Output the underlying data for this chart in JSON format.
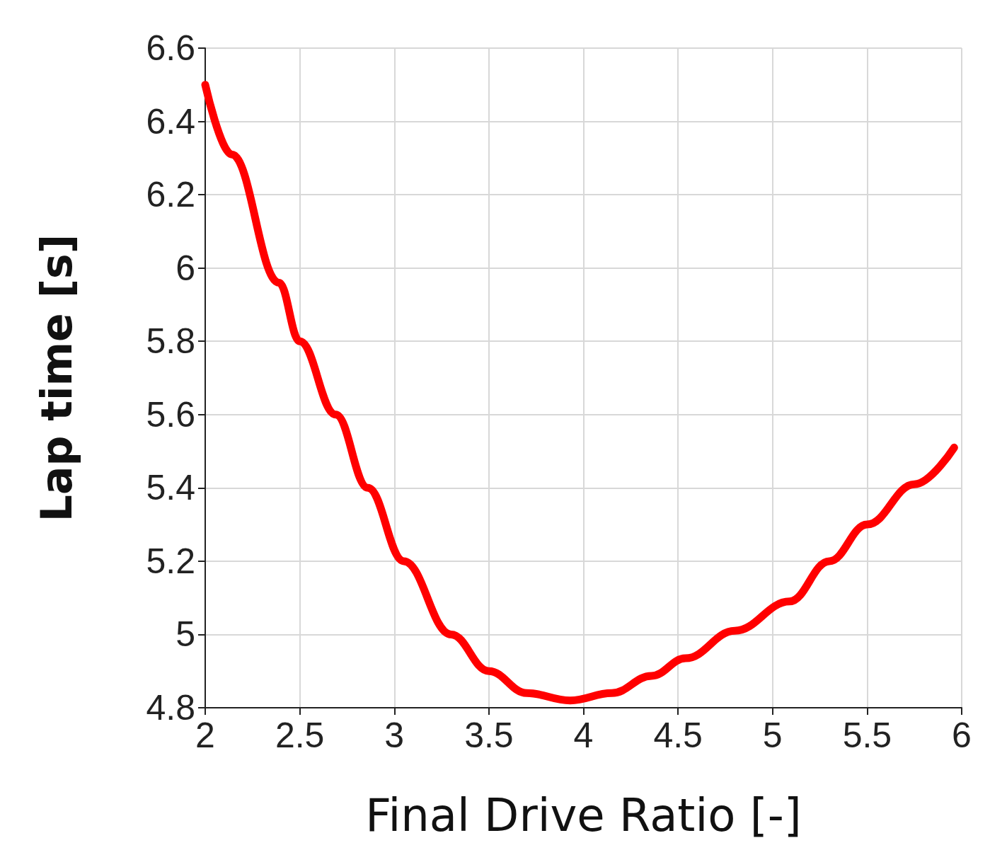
{
  "chart_data": {
    "type": "line",
    "xlabel": "Final Drive Ratio [-]",
    "ylabel": "Lap time [s]",
    "series": [
      {
        "color": "#ff0000",
        "x": [
          2,
          2.14,
          2.39,
          2.5,
          2.69,
          2.86,
          3.05,
          3.3,
          3.5,
          3.7,
          3.93,
          4.15,
          4.36,
          4.54,
          4.8,
          5.09,
          5.3,
          5.5,
          5.75,
          5.96
        ],
        "values": [
          6.5,
          6.31,
          5.96,
          5.8,
          5.6,
          5.4,
          5.2,
          5.0,
          4.9,
          4.84,
          4.82,
          4.84,
          4.887,
          4.935,
          5.01,
          5.09,
          5.2,
          5.3,
          5.41,
          5.51
        ]
      }
    ],
    "xlim": [
      2,
      6
    ],
    "xticks": [
      2,
      2.5,
      3,
      3.5,
      4,
      4.5,
      5,
      5.5,
      6
    ],
    "ylim": [
      4.8,
      6.6
    ],
    "yticks": [
      4.8,
      5,
      5.2,
      5.4,
      5.6,
      5.8,
      6,
      6.2,
      6.4,
      6.6
    ],
    "grid": true,
    "line_style": "solid"
  }
}
